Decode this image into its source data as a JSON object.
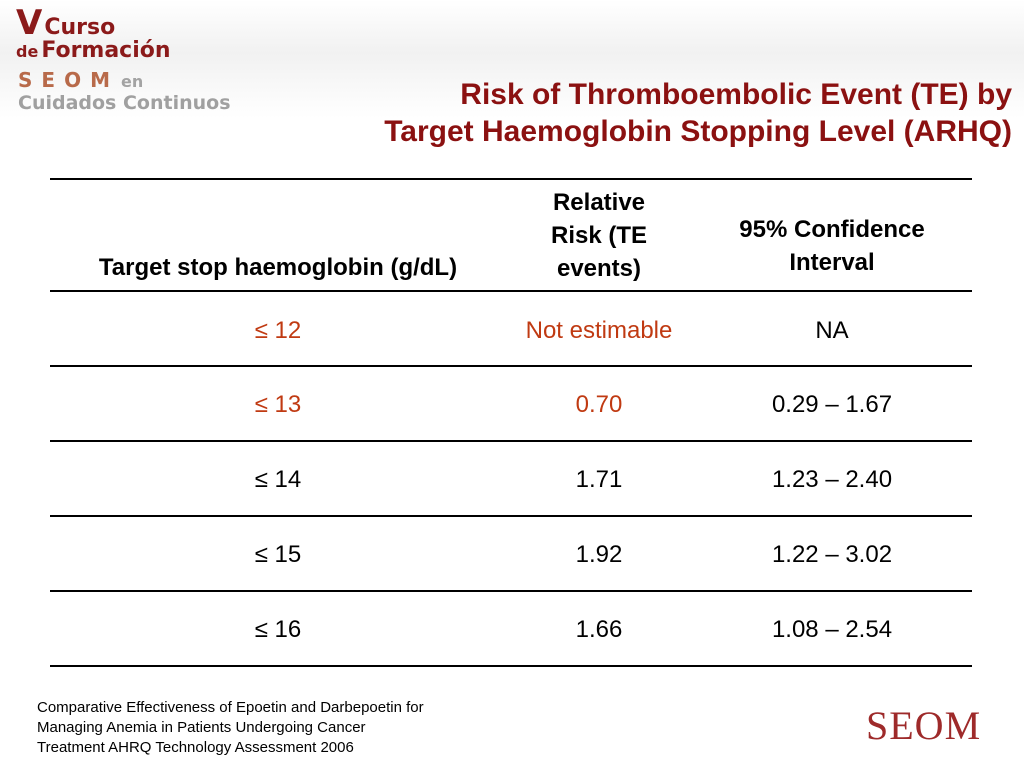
{
  "logo": {
    "line1_big": "V",
    "line1_rest": "Curso",
    "line2_prefix": "de",
    "line2_word": "Formación",
    "line3_word": "SEOM",
    "line3_suffix": "en",
    "line4": "Cuidados Continuos"
  },
  "title": {
    "line1": "Risk of Thromboembolic Event (TE) by",
    "line2": "Target Haemoglobin Stopping Level (ARHQ)"
  },
  "table": {
    "headers": {
      "col1": "Target stop haemoglobin (g/dL)",
      "col2_lines": [
        "Relative",
        "Risk (TE",
        "events)"
      ],
      "col3_lines": [
        "95% Confidence",
        "Interval"
      ]
    },
    "rows": [
      {
        "target": "≤ 12",
        "risk": "Not estimable",
        "ci": "NA",
        "target_highlight": true,
        "risk_highlight": true
      },
      {
        "target": "≤ 13",
        "risk": "0.70",
        "ci": "0.29 – 1.67",
        "target_highlight": true,
        "risk_highlight": true
      },
      {
        "target": "≤ 14",
        "risk": "1.71",
        "ci": "1.23 – 2.40",
        "target_highlight": false,
        "risk_highlight": false
      },
      {
        "target": "≤ 15",
        "risk": "1.92",
        "ci": "1.22 – 3.02",
        "target_highlight": false,
        "risk_highlight": false
      },
      {
        "target": "≤ 16",
        "risk": "1.66",
        "ci": "1.08 – 2.54",
        "target_highlight": false,
        "risk_highlight": false
      }
    ]
  },
  "citation": {
    "lines": [
      "Comparative Effectiveness of Epoetin and Darbepoetin for",
      "Managing Anemia in Patients Undergoing Cancer",
      "Treatment AHRQ Technology Assessment 2006"
    ]
  },
  "brand": {
    "wordmark": "SEOM"
  },
  "colors": {
    "title": "#8b1111",
    "highlight": "#c03a12",
    "logo_dark_red": "#8b1a1a",
    "brand": "#9e2a2a"
  }
}
